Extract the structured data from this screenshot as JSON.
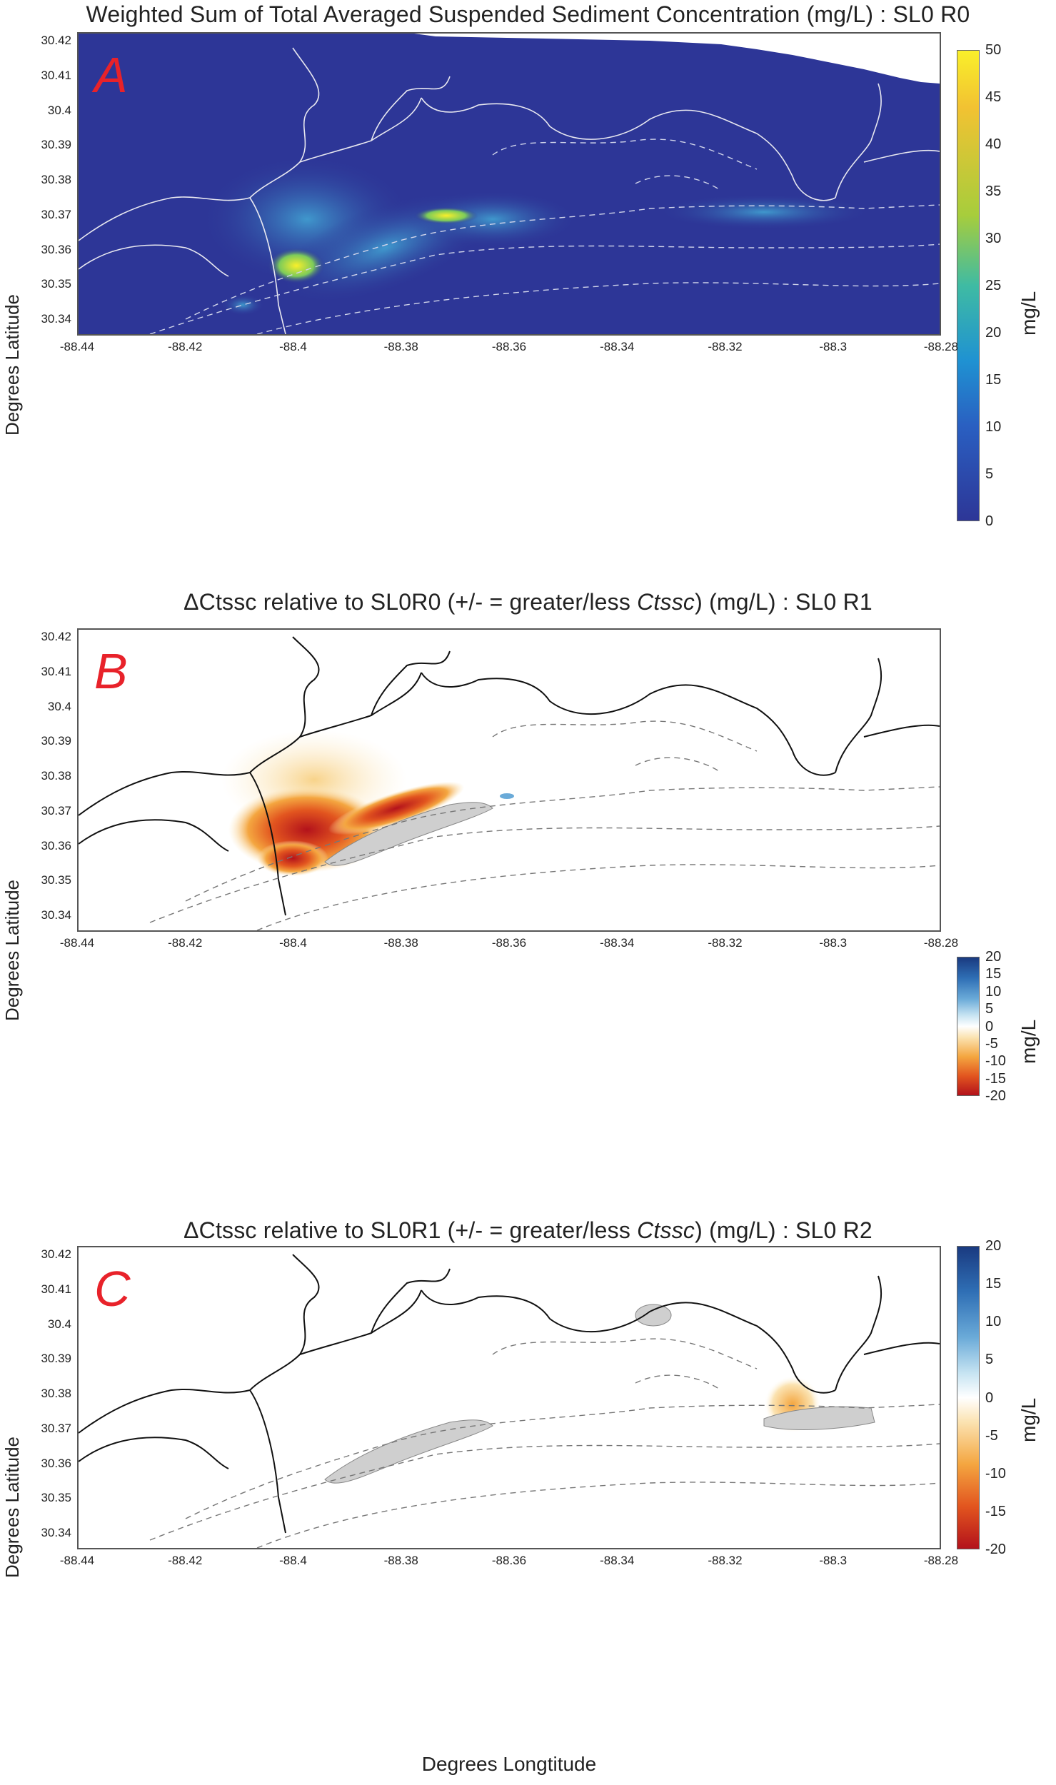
{
  "axes": {
    "y_label": "Degrees Latitude",
    "x_label": "Degrees Longtitude",
    "y_ticks": [
      "30.42",
      "30.41",
      "30.4",
      "30.39",
      "30.38",
      "30.37",
      "30.36",
      "30.35",
      "30.34"
    ],
    "x_ticks": [
      "-88.44",
      "-88.42",
      "-88.4",
      "-88.38",
      "-88.36",
      "-88.34",
      "-88.32",
      "-88.3",
      "-88.28"
    ]
  },
  "panels": [
    {
      "id": "A",
      "letter": "A",
      "title": "Weighted Sum of Total Averaged Suspended Sediment Concentration (mg/L)  :  SL0 R0",
      "colorbar": {
        "unit": "mg/L",
        "ticks": [
          "50",
          "45",
          "40",
          "35",
          "30",
          "25",
          "20",
          "15",
          "10",
          "5",
          "0"
        ],
        "colors": [
          "#f9ef2a",
          "#f5c331",
          "#e7a73a",
          "#a7cd3c",
          "#42bb8e",
          "#1fa7b8",
          "#1f8fd1",
          "#2a6fcf",
          "#2a4fb5",
          "#2d3697"
        ]
      },
      "background_color": "#2d3697"
    },
    {
      "id": "B",
      "letter": "B",
      "title_pre": "ΔCtssc relative to SL0R0  (+/- = greater/less ",
      "title_it": "Ctssc",
      "title_post": ") (mg/L)  :  SL0 R1",
      "title_sym": "Ctssc",
      "colorbar": {
        "unit": "mg/L",
        "ticks": [
          "20",
          "15",
          "10",
          "5",
          "0",
          "-5",
          "-10",
          "-15",
          "-20"
        ],
        "colors": [
          "#1a3a80",
          "#2f6fb5",
          "#6aaad8",
          "#c7e4f2",
          "#ffffff",
          "#fbe3b2",
          "#f4a640",
          "#e2551f",
          "#b3121b"
        ]
      }
    },
    {
      "id": "C",
      "letter": "C",
      "title_pre": "ΔCtssc relative to SL0R1  (+/- = greater/less ",
      "title_it": "Ctssc",
      "title_post": ") (mg/L)  :  SL0 R2",
      "colorbar": {
        "unit": "mg/L",
        "ticks": [
          "20",
          "15",
          "10",
          "5",
          "0",
          "-5",
          "-10",
          "-15",
          "-20"
        ],
        "colors": [
          "#1a3a80",
          "#2f6fb5",
          "#6aaad8",
          "#c7e4f2",
          "#ffffff",
          "#fbe3b2",
          "#f4a640",
          "#e2551f",
          "#b3121b"
        ]
      }
    }
  ]
}
